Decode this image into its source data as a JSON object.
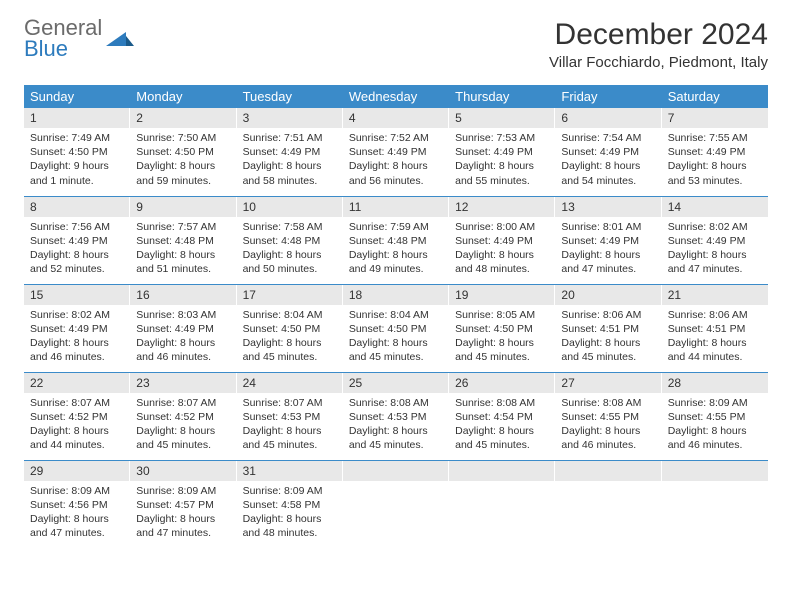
{
  "brand": {
    "line1": "General",
    "line2": "Blue"
  },
  "title": "December 2024",
  "location": "Villar Focchiardo, Piedmont, Italy",
  "colors": {
    "header_bg": "#3b8bc9",
    "header_fg": "#ffffff",
    "daynum_bg": "#e8e8e8",
    "row_border": "#3b8bc9",
    "text": "#333333",
    "logo_gray": "#6b6b6b",
    "logo_blue": "#2d7bbd"
  },
  "weekdays": [
    "Sunday",
    "Monday",
    "Tuesday",
    "Wednesday",
    "Thursday",
    "Friday",
    "Saturday"
  ],
  "weeks": [
    [
      {
        "n": "1",
        "sr": "7:49 AM",
        "ss": "4:50 PM",
        "dl": "9 hours and 1 minute."
      },
      {
        "n": "2",
        "sr": "7:50 AM",
        "ss": "4:50 PM",
        "dl": "8 hours and 59 minutes."
      },
      {
        "n": "3",
        "sr": "7:51 AM",
        "ss": "4:49 PM",
        "dl": "8 hours and 58 minutes."
      },
      {
        "n": "4",
        "sr": "7:52 AM",
        "ss": "4:49 PM",
        "dl": "8 hours and 56 minutes."
      },
      {
        "n": "5",
        "sr": "7:53 AM",
        "ss": "4:49 PM",
        "dl": "8 hours and 55 minutes."
      },
      {
        "n": "6",
        "sr": "7:54 AM",
        "ss": "4:49 PM",
        "dl": "8 hours and 54 minutes."
      },
      {
        "n": "7",
        "sr": "7:55 AM",
        "ss": "4:49 PM",
        "dl": "8 hours and 53 minutes."
      }
    ],
    [
      {
        "n": "8",
        "sr": "7:56 AM",
        "ss": "4:49 PM",
        "dl": "8 hours and 52 minutes."
      },
      {
        "n": "9",
        "sr": "7:57 AM",
        "ss": "4:48 PM",
        "dl": "8 hours and 51 minutes."
      },
      {
        "n": "10",
        "sr": "7:58 AM",
        "ss": "4:48 PM",
        "dl": "8 hours and 50 minutes."
      },
      {
        "n": "11",
        "sr": "7:59 AM",
        "ss": "4:48 PM",
        "dl": "8 hours and 49 minutes."
      },
      {
        "n": "12",
        "sr": "8:00 AM",
        "ss": "4:49 PM",
        "dl": "8 hours and 48 minutes."
      },
      {
        "n": "13",
        "sr": "8:01 AM",
        "ss": "4:49 PM",
        "dl": "8 hours and 47 minutes."
      },
      {
        "n": "14",
        "sr": "8:02 AM",
        "ss": "4:49 PM",
        "dl": "8 hours and 47 minutes."
      }
    ],
    [
      {
        "n": "15",
        "sr": "8:02 AM",
        "ss": "4:49 PM",
        "dl": "8 hours and 46 minutes."
      },
      {
        "n": "16",
        "sr": "8:03 AM",
        "ss": "4:49 PM",
        "dl": "8 hours and 46 minutes."
      },
      {
        "n": "17",
        "sr": "8:04 AM",
        "ss": "4:50 PM",
        "dl": "8 hours and 45 minutes."
      },
      {
        "n": "18",
        "sr": "8:04 AM",
        "ss": "4:50 PM",
        "dl": "8 hours and 45 minutes."
      },
      {
        "n": "19",
        "sr": "8:05 AM",
        "ss": "4:50 PM",
        "dl": "8 hours and 45 minutes."
      },
      {
        "n": "20",
        "sr": "8:06 AM",
        "ss": "4:51 PM",
        "dl": "8 hours and 45 minutes."
      },
      {
        "n": "21",
        "sr": "8:06 AM",
        "ss": "4:51 PM",
        "dl": "8 hours and 44 minutes."
      }
    ],
    [
      {
        "n": "22",
        "sr": "8:07 AM",
        "ss": "4:52 PM",
        "dl": "8 hours and 44 minutes."
      },
      {
        "n": "23",
        "sr": "8:07 AM",
        "ss": "4:52 PM",
        "dl": "8 hours and 45 minutes."
      },
      {
        "n": "24",
        "sr": "8:07 AM",
        "ss": "4:53 PM",
        "dl": "8 hours and 45 minutes."
      },
      {
        "n": "25",
        "sr": "8:08 AM",
        "ss": "4:53 PM",
        "dl": "8 hours and 45 minutes."
      },
      {
        "n": "26",
        "sr": "8:08 AM",
        "ss": "4:54 PM",
        "dl": "8 hours and 45 minutes."
      },
      {
        "n": "27",
        "sr": "8:08 AM",
        "ss": "4:55 PM",
        "dl": "8 hours and 46 minutes."
      },
      {
        "n": "28",
        "sr": "8:09 AM",
        "ss": "4:55 PM",
        "dl": "8 hours and 46 minutes."
      }
    ],
    [
      {
        "n": "29",
        "sr": "8:09 AM",
        "ss": "4:56 PM",
        "dl": "8 hours and 47 minutes."
      },
      {
        "n": "30",
        "sr": "8:09 AM",
        "ss": "4:57 PM",
        "dl": "8 hours and 47 minutes."
      },
      {
        "n": "31",
        "sr": "8:09 AM",
        "ss": "4:58 PM",
        "dl": "8 hours and 48 minutes."
      },
      null,
      null,
      null,
      null
    ]
  ],
  "labels": {
    "sunrise": "Sunrise:",
    "sunset": "Sunset:",
    "daylight": "Daylight:"
  }
}
